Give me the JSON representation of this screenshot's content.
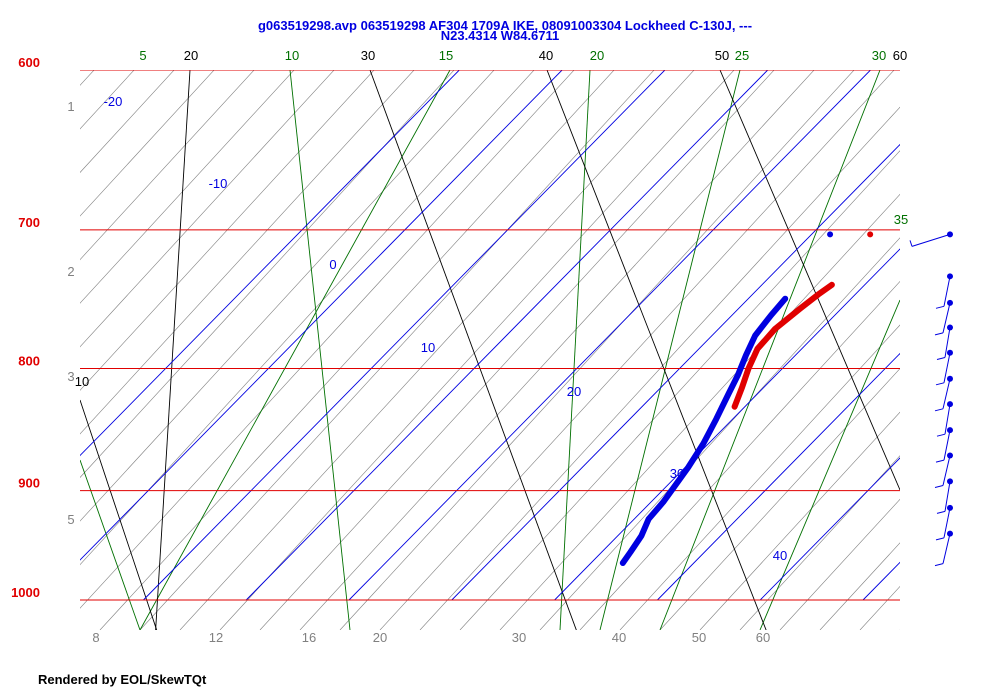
{
  "chart_data": {
    "type": "skew-t",
    "title_line1": "g063519298.avp 063519298 AF304 1709A IKE, 08091003304 Lockheed C-130J, ---",
    "title_line2": "N23.4314 W84.6711",
    "footer": "Rendered by EOL/SkewTQt",
    "pressure_levels": [
      600,
      700,
      800,
      900,
      1000
    ],
    "isotherms": [
      -20,
      -10,
      0,
      10,
      20,
      30,
      40
    ],
    "dry_adiabats": [
      10,
      20,
      30,
      40,
      50,
      60
    ],
    "moist_adiabats": [
      5,
      10,
      15,
      20,
      25,
      30,
      35
    ],
    "mixing_ratio_labels": [
      "8",
      "12",
      "16",
      "20",
      "30",
      "40",
      "50",
      "60"
    ],
    "height_labels": [
      "1",
      "2",
      "3",
      "5"
    ],
    "temperature_profile": {
      "name": "Temperature",
      "color": "#e00000",
      "points": [
        {
          "p": 738,
          "t": 16.8
        },
        {
          "p": 745,
          "t": 16.4
        },
        {
          "p": 755,
          "t": 16.0
        },
        {
          "p": 770,
          "t": 15.5
        },
        {
          "p": 785,
          "t": 15.7
        },
        {
          "p": 800,
          "t": 16.7
        },
        {
          "p": 815,
          "t": 17.9
        },
        {
          "p": 830,
          "t": 19.0
        }
      ]
    },
    "dewpoint_profile": {
      "name": "Dewpoint",
      "color": "#0000e0",
      "points": [
        {
          "p": 748,
          "t": 13.6
        },
        {
          "p": 760,
          "t": 13.8
        },
        {
          "p": 775,
          "t": 14.2
        },
        {
          "p": 790,
          "t": 15.2
        },
        {
          "p": 805,
          "t": 16.3
        },
        {
          "p": 820,
          "t": 17.2
        },
        {
          "p": 840,
          "t": 18.4
        },
        {
          "p": 860,
          "t": 19.5
        },
        {
          "p": 880,
          "t": 20.3
        },
        {
          "p": 900,
          "t": 20.9
        },
        {
          "p": 910,
          "t": 21.2
        },
        {
          "p": 925,
          "t": 21.4
        },
        {
          "p": 940,
          "t": 22.3
        },
        {
          "p": 955,
          "t": 22.8
        },
        {
          "p": 965,
          "t": 23.1
        }
      ]
    },
    "top_markers": [
      {
        "color": "#0000e0",
        "p": 703,
        "t": 11.8
      },
      {
        "color": "#e00000",
        "p": 703,
        "t": 15.7
      }
    ],
    "wind_barbs": {
      "color": "#0000e0",
      "levels": [
        703,
        732,
        751,
        769,
        788,
        808,
        828,
        849,
        870,
        892,
        915,
        938
      ]
    },
    "colors": {
      "isobar": "#e00000",
      "isotherm": "#0000e0",
      "dry_adiabat": "#000000",
      "moist_adiabat": "#007000",
      "mixing_ratio": "#808080"
    }
  }
}
